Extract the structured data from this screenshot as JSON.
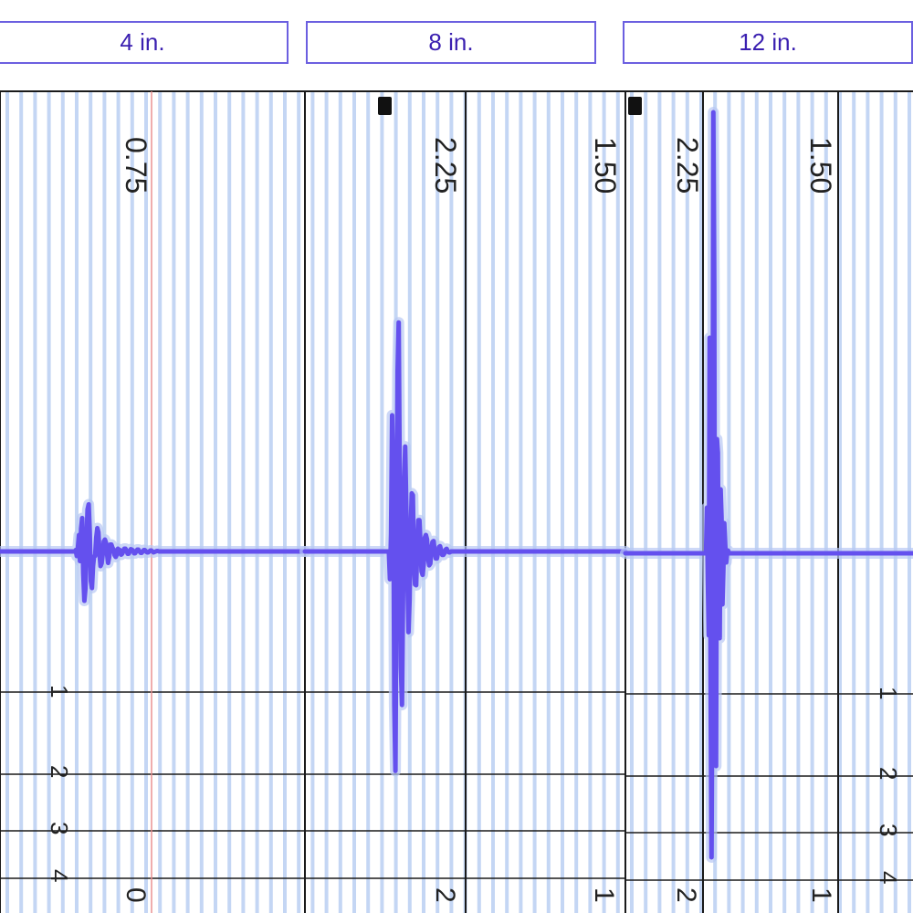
{
  "headers": [
    "4 in.",
    "8 in.",
    "12 in."
  ],
  "colors": {
    "trace": "#6450ee",
    "trace_glow": "#b8c8f4",
    "stripe": "#c4d6f4",
    "header_border": "#6b5fe0",
    "header_text": "#3a1fb0",
    "divider": "#1a1a1a",
    "cursor": "#e88a8a"
  },
  "chart_data": [
    {
      "type": "line",
      "label": "4 in.",
      "top_labels": [
        "0.75"
      ],
      "row_labels": [
        "1",
        "2",
        "3",
        "4"
      ],
      "bottom_labels": [
        "0"
      ],
      "series": [
        {
          "values": [
            0,
            0,
            0,
            0,
            0,
            0,
            0,
            0,
            0,
            0,
            0,
            0,
            0,
            0,
            0,
            0,
            0,
            0,
            0,
            0,
            0,
            0,
            0,
            0,
            0,
            0,
            0,
            0,
            0,
            0,
            0,
            0,
            0,
            0,
            0,
            0,
            0,
            0,
            0,
            0,
            0,
            0,
            0,
            0,
            0,
            0,
            0,
            0,
            0,
            0,
            0,
            0,
            0,
            0,
            0,
            0,
            0,
            0,
            0,
            0,
            0,
            0,
            0,
            0,
            0,
            0,
            0,
            0,
            0,
            0,
            0.3,
            -1.0,
            0.8,
            3.6,
            -2.1,
            5.0,
            7.3,
            -4.8,
            -10.8,
            -8.1,
            3.0,
            9.2,
            10.3,
            4.1,
            -6.5,
            -8.0,
            -3.2,
            -1.1,
            -1.0,
            3.0,
            5.1,
            4.2,
            -0.5,
            -3.2,
            -2.6,
            -0.6,
            2.2,
            2.6,
            1.9,
            -0.6,
            -2.5,
            -1.2,
            1.5,
            1.5,
            0.8,
            0.4,
            -0.8,
            -1.2,
            -0.7,
            0.6,
            0.4,
            0.3,
            -0.7,
            -0.5,
            0.0,
            0.6,
            0.6,
            0.2,
            -0.5,
            -0.5,
            0.0,
            0.5,
            0.4,
            0.2,
            -0.4,
            -0.4,
            0.0,
            0.4,
            0.4,
            0.0,
            -0.3,
            -0.3,
            0.0,
            0.3,
            0.3,
            0.0,
            -0.2,
            -0.2,
            0.0,
            0.2,
            0.2,
            0.0,
            -0.2,
            -0.1,
            0.0,
            0.1,
            0.1,
            0.0,
            0.0,
            0,
            0,
            0,
            0,
            0,
            0,
            0,
            0,
            0,
            0,
            0,
            0,
            0,
            0,
            0,
            0,
            0,
            0,
            0,
            0,
            0,
            0,
            0,
            0,
            0,
            0,
            0,
            0,
            0,
            0,
            0,
            0,
            0,
            0,
            0,
            0,
            0,
            0,
            0,
            0,
            0,
            0,
            0,
            0,
            0,
            0,
            0,
            0,
            0,
            0,
            0,
            0,
            0,
            0,
            0,
            0,
            0,
            0,
            0,
            0,
            0,
            0,
            0,
            0,
            0,
            0,
            0,
            0,
            0,
            0,
            0,
            0,
            0,
            0,
            0,
            0,
            0,
            0,
            0,
            0,
            0,
            0,
            0,
            0,
            0,
            0,
            0,
            0,
            0,
            0,
            0,
            0,
            0,
            0,
            0,
            0,
            0,
            0,
            0,
            0,
            0,
            0,
            0,
            0,
            0,
            0,
            0,
            0,
            0,
            0,
            0,
            0,
            0,
            0,
            0,
            0,
            0,
            0,
            0,
            0,
            0,
            0,
            0,
            0,
            0,
            0,
            0,
            0,
            0,
            0,
            0,
            0,
            0,
            0
          ]
        }
      ]
    },
    {
      "type": "line",
      "label": "8 in.",
      "top_labels": [
        "2.25",
        "1.50"
      ],
      "bottom_labels": [
        "2",
        "1"
      ],
      "series": [
        {
          "values": [
            0,
            0,
            0,
            0,
            0,
            0,
            0,
            0,
            0,
            0,
            0,
            0,
            0,
            0,
            0,
            0,
            0,
            0,
            0,
            0,
            0,
            0,
            0,
            0,
            0,
            0,
            0,
            0,
            0,
            0,
            0,
            0,
            0,
            0,
            0,
            0,
            0,
            0,
            0,
            0,
            0,
            0,
            0,
            0,
            0,
            0,
            0,
            0,
            0,
            0,
            0,
            0,
            0,
            0,
            0,
            0,
            0,
            0,
            0,
            0,
            0,
            0,
            0,
            0,
            0,
            0,
            0,
            0,
            0,
            0,
            0,
            0,
            0,
            0,
            0,
            0,
            0,
            0,
            -3.2,
            2.0,
            15.7,
            9.8,
            -17.7,
            -25.3,
            -3.0,
            20.8,
            26.4,
            6.9,
            -13.3,
            -17.7,
            -5.6,
            7.9,
            12.1,
            5.1,
            -2.8,
            -9.3,
            -5.6,
            2.4,
            6.7,
            6.5,
            -1.4,
            -3.8,
            -3.9,
            0.3,
            3.6,
            3.6,
            0.8,
            -2.3,
            -2.7,
            -1.4,
            1.6,
            1.9,
            1.4,
            -0.8,
            -1.6,
            -1.4,
            0.3,
            1.1,
            1.2,
            0.0,
            -0.8,
            -0.8,
            -0.2,
            0.5,
            0.6,
            0.1,
            -0.4,
            -0.4,
            -0.2,
            0.2,
            0.3,
            0.0,
            -0.1,
            -0.1,
            0.0,
            0.0,
            0,
            0,
            0,
            0,
            0,
            0,
            0,
            0,
            0,
            0,
            0,
            0,
            0,
            0,
            0,
            0,
            0,
            0,
            0,
            0,
            0,
            0,
            0,
            0,
            0,
            0,
            0,
            0,
            0,
            0,
            0,
            0,
            0,
            0,
            0,
            0,
            0,
            0,
            0,
            0,
            0,
            0,
            0,
            0,
            0,
            0,
            0,
            0,
            0,
            0,
            0,
            0,
            0,
            0,
            0,
            0,
            0,
            0,
            0,
            0,
            0,
            0,
            0,
            0,
            0,
            0,
            0,
            0,
            0,
            0,
            0,
            0,
            0,
            0,
            0,
            0,
            0,
            0,
            0,
            0,
            0,
            0,
            0,
            0,
            0,
            0,
            0,
            0,
            0,
            0,
            0,
            0,
            0,
            0,
            0,
            0,
            0,
            0,
            0,
            0,
            0,
            0,
            0,
            0,
            0,
            0,
            0,
            0,
            0,
            0,
            0,
            0,
            0,
            0,
            0,
            0,
            0,
            0,
            0,
            0,
            0,
            0,
            0,
            0,
            0,
            0,
            0,
            0,
            0,
            0,
            0,
            0,
            0,
            0,
            0,
            0,
            0,
            0,
            0,
            0,
            0,
            0,
            0,
            0,
            0,
            0,
            0,
            0,
            0,
            0,
            0,
            0,
            0,
            0,
            0,
            0,
            0,
            0,
            0
          ]
        }
      ]
    },
    {
      "type": "line",
      "label": "12 in.",
      "top_labels": [
        "2.25",
        "1.50"
      ],
      "row_labels": [
        "1",
        "2",
        "3",
        "4"
      ],
      "bottom_labels": [
        "2",
        "1"
      ],
      "series": [
        {
          "values": [
            0,
            0,
            0,
            0,
            0,
            0,
            0,
            0,
            0,
            0,
            0,
            0,
            0,
            0,
            0,
            0,
            0,
            0,
            0,
            0,
            0,
            0,
            0,
            0,
            0,
            0,
            0,
            0,
            0,
            0,
            0,
            0,
            0,
            0,
            0,
            0,
            0,
            0,
            0,
            0,
            0,
            0,
            0,
            0,
            0,
            0,
            0,
            0,
            0,
            0,
            0,
            0,
            0,
            0,
            0,
            0,
            0,
            0,
            0,
            0,
            0,
            0,
            0,
            0,
            0,
            0,
            0,
            0,
            0,
            0,
            0,
            0,
            0,
            0,
            0,
            0,
            0,
            0,
            0,
            0,
            0,
            0,
            0,
            0,
            0,
            0,
            0,
            0,
            0,
            5.0,
            -3.0,
            -9.0,
            23.6,
            -14.0,
            -33.3,
            -11.4,
            48.3,
            29.4,
            -22.4,
            -23.3,
            12.5,
            11.0,
            -6.3,
            -9.3,
            7.0,
            3.9,
            -5.6,
            -1.8,
            3.3,
            1.0,
            -1.0,
            0.0,
            0.3,
            0.0,
            0,
            0,
            0,
            0,
            0,
            0,
            0,
            0,
            0,
            0,
            0,
            0,
            0,
            0,
            0,
            0,
            0,
            0,
            0,
            0,
            0,
            0,
            0,
            0,
            0,
            0,
            0,
            0,
            0,
            0,
            0,
            0,
            0,
            0,
            0,
            0,
            0,
            0,
            0,
            0,
            0,
            0,
            0,
            0,
            0,
            0,
            0,
            0,
            0,
            0,
            0,
            0,
            0,
            0,
            0,
            0,
            0,
            0,
            0,
            0,
            0,
            0,
            0,
            0,
            0,
            0,
            0,
            0,
            0,
            0,
            0,
            0,
            0,
            0,
            0,
            0,
            0,
            0,
            0,
            0,
            0,
            0,
            0,
            0,
            0,
            0,
            0,
            0,
            0,
            0,
            0,
            0,
            0,
            0,
            0,
            0,
            0,
            0,
            0,
            0,
            0,
            0,
            0,
            0,
            0,
            0,
            0,
            0,
            0,
            0,
            0,
            0,
            0,
            0,
            0,
            0,
            0,
            0,
            0,
            0,
            0,
            0,
            0,
            0,
            0,
            0,
            0,
            0,
            0,
            0,
            0,
            0,
            0,
            0,
            0,
            0,
            0,
            0,
            0,
            0,
            0,
            0,
            0,
            0,
            0,
            0,
            0,
            0,
            0,
            0,
            0,
            0,
            0,
            0,
            0,
            0,
            0,
            0,
            0,
            0,
            0,
            0,
            0,
            0,
            0,
            0,
            0,
            0,
            0,
            0,
            0,
            0,
            0,
            0,
            0,
            0,
            0,
            0,
            0,
            0,
            0,
            0,
            0,
            0,
            0,
            0,
            0,
            0,
            0,
            0,
            0,
            0,
            0,
            0,
            0,
            0,
            0,
            0,
            0,
            0,
            0
          ]
        }
      ]
    }
  ]
}
